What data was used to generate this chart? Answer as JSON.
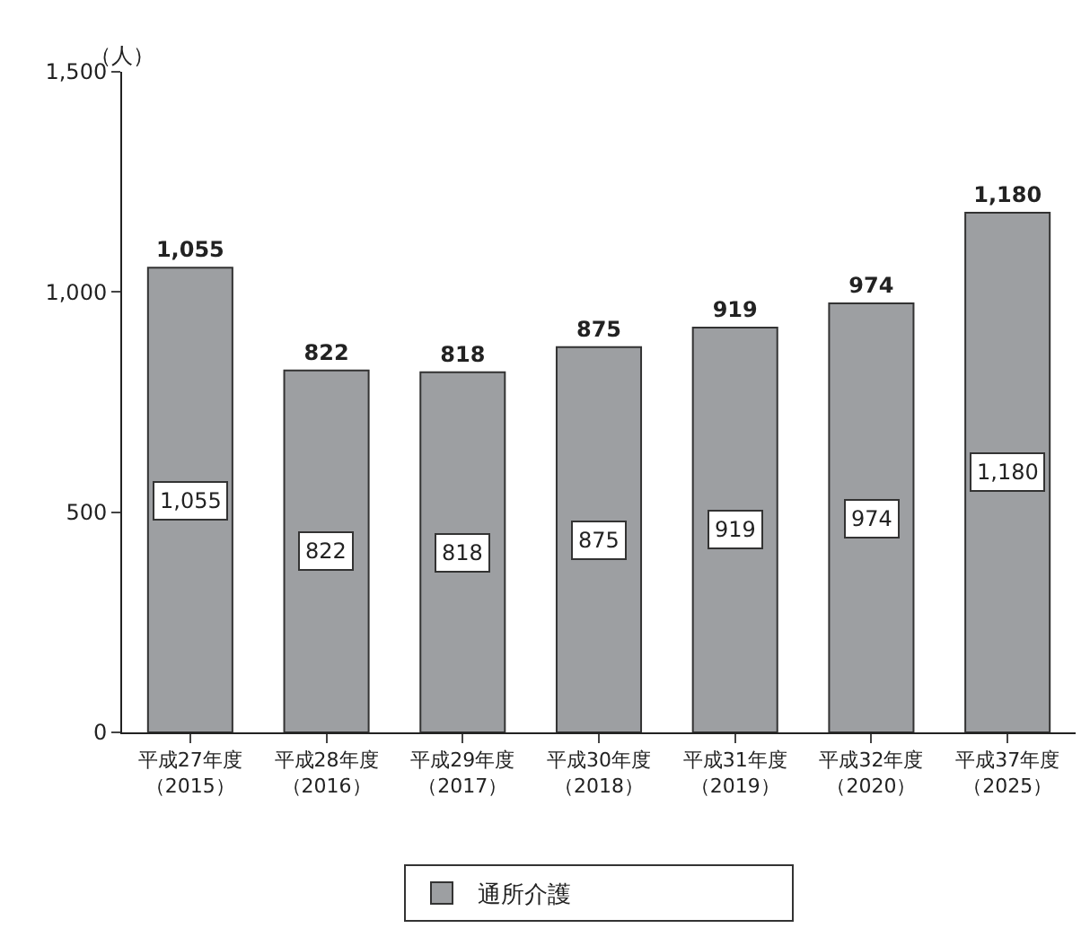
{
  "chart_data": {
    "type": "bar",
    "ylabel": "（人）",
    "categories": [
      "平成27年度（2015）",
      "平成28年度（2016）",
      "平成29年度（2017）",
      "平成30年度（2018）",
      "平成31年度（2019）",
      "平成32年度（2020）",
      "平成37年度（2025）"
    ],
    "series": [
      {
        "name": "通所介護",
        "color": "#9d9fa2",
        "values": [
          1055,
          822,
          818,
          875,
          919,
          974,
          1180
        ]
      }
    ],
    "ylim": [
      0,
      1500
    ],
    "yticks": [
      0,
      {
        "value": 500,
        "label": "500"
      },
      {
        "value": 1000,
        "label": "1,000"
      },
      {
        "value": 1500,
        "label": "1,500"
      }
    ],
    "value_labels": [
      "1,055",
      "822",
      "818",
      "875",
      "919",
      "974",
      "1,180"
    ],
    "legend": "bottom"
  }
}
